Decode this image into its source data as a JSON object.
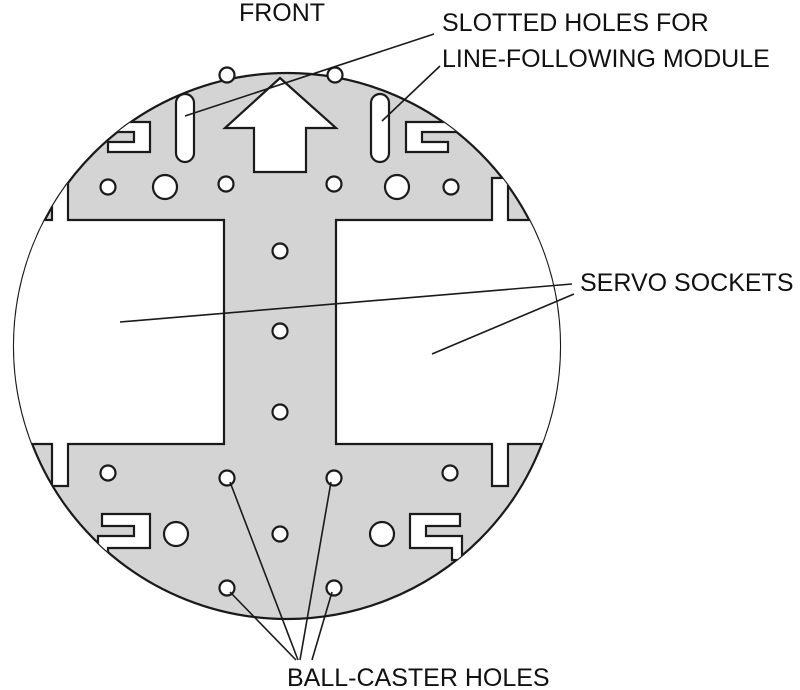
{
  "labels": {
    "front": "FRONT",
    "slotted_line1": "SLOTTED HOLES FOR",
    "slotted_line2": "LINE-FOLLOWING MODULE",
    "servo_sockets": "SERVO SOCKETS",
    "ball_caster": "BALL-CASTER HOLES"
  },
  "colors": {
    "plate": "#d4d4d4",
    "outline": "#1a1a1a",
    "cutout": "#ffffff"
  },
  "icons": {
    "front_arrow": "arrow-up-icon"
  }
}
